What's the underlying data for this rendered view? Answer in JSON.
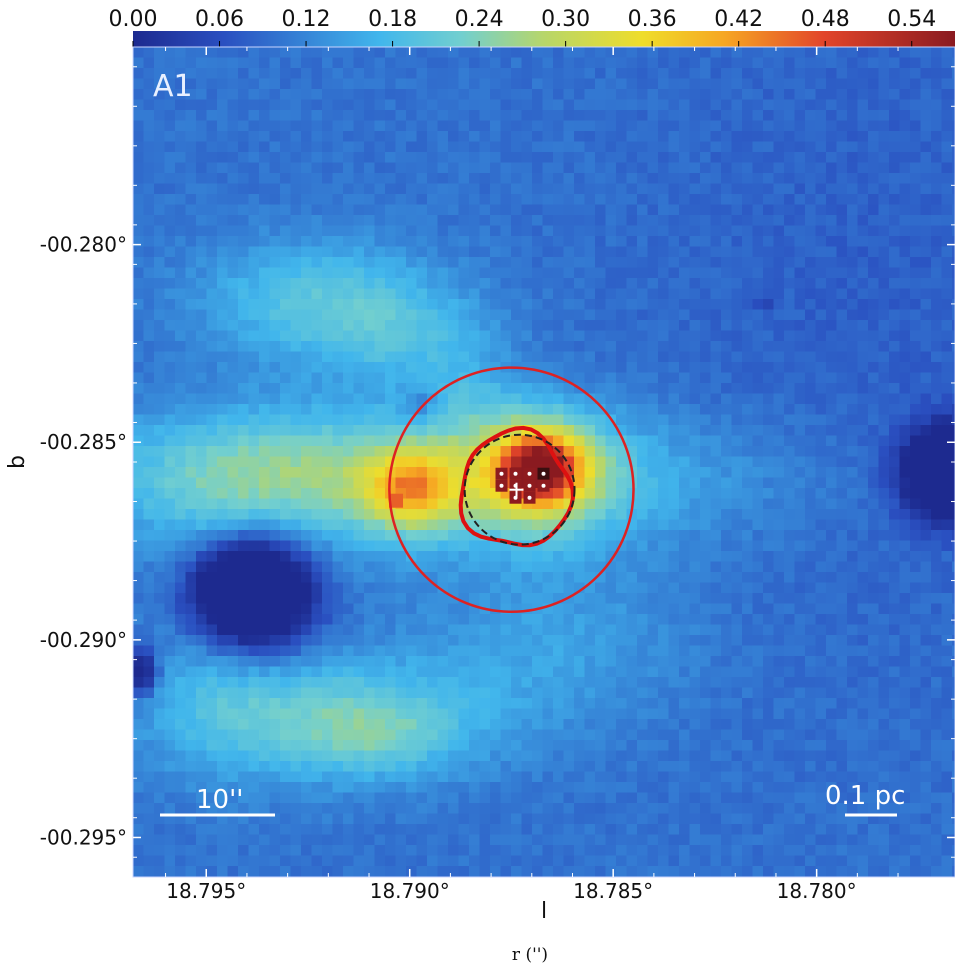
{
  "chart_data": {
    "type": "heatmap",
    "panel_label": "A1",
    "colorbar": {
      "ticks": [
        "0.00",
        "0.06",
        "0.12",
        "0.18",
        "0.24",
        "0.30",
        "0.36",
        "0.42",
        "0.48",
        "0.54"
      ],
      "range": [
        0.0,
        0.57
      ],
      "colormap": "jet",
      "position": "top"
    },
    "xlabel": "l",
    "ylabel": "b",
    "extra_label": "r ('')",
    "x_ticks": [
      "18.795°",
      "18.790°",
      "18.785°",
      "18.780°"
    ],
    "x_tick_values": [
      18.795,
      18.79,
      18.785,
      18.78
    ],
    "y_ticks": [
      "-00.280°",
      "-00.285°",
      "-00.290°",
      "-00.295°"
    ],
    "y_tick_values": [
      -0.28,
      -0.285,
      -0.29,
      -0.295
    ],
    "xlim": [
      18.7968,
      18.7766
    ],
    "ylim": [
      -0.296,
      -0.275
    ],
    "scalebars": [
      {
        "label": "10''",
        "corner": "bottom-left"
      },
      {
        "label": "0.1 pc",
        "corner": "bottom-right"
      }
    ],
    "features": [
      {
        "name": "peak",
        "l": 18.7874,
        "b": -0.2861,
        "value": 0.55
      },
      {
        "name": "secondary-peak",
        "l": 18.791,
        "b": -0.2861,
        "value": 0.42
      },
      {
        "name": "hole-west",
        "l": 18.796,
        "b": -0.2888,
        "value": 0.01
      },
      {
        "name": "hole-east",
        "l": 18.777,
        "b": -0.286,
        "value": 0.01
      }
    ],
    "contours": [
      {
        "name": "outer-circle",
        "color": "#dd2222",
        "center_l": 18.7875,
        "center_b": -0.2862,
        "radius_deg": 0.003
      },
      {
        "name": "inner-contour",
        "color": "#dd1111",
        "center_l": 18.7874,
        "center_b": -0.2862,
        "radius_deg": 0.00135
      },
      {
        "name": "dashed-contour",
        "color": "#222222",
        "center_l": 18.7873,
        "center_b": -0.2862,
        "radius_deg": 0.00135
      }
    ],
    "grid": false
  }
}
